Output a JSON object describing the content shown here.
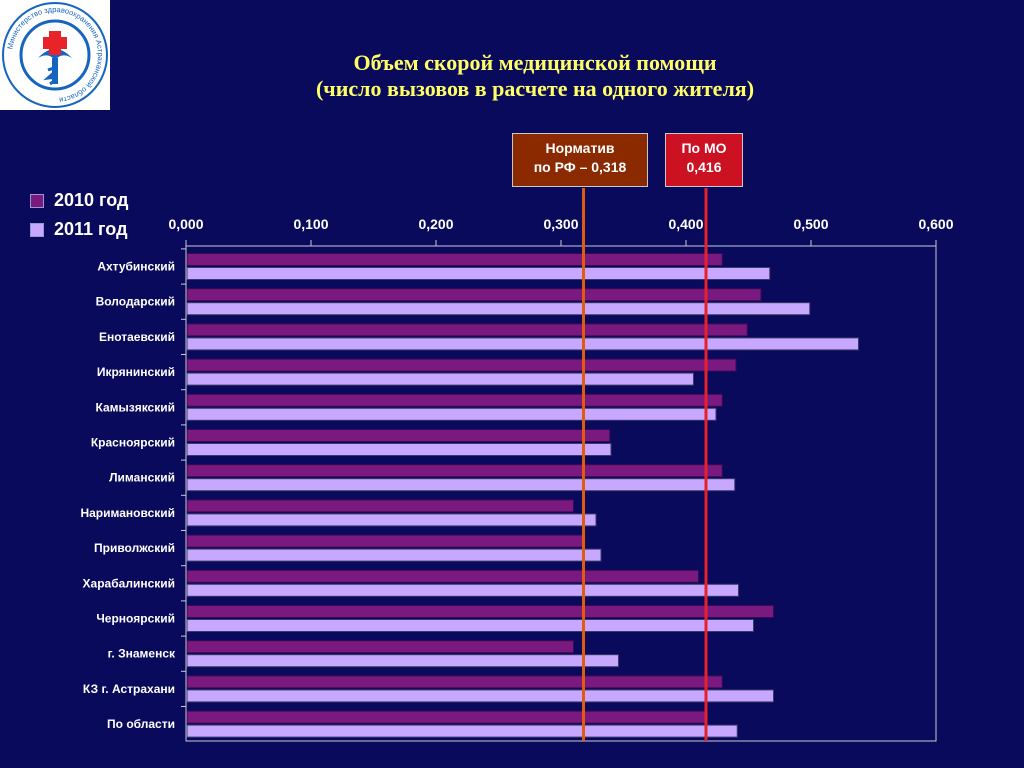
{
  "title_line1": "Объем скорой медицинской помощи",
  "title_line2": "(число вызовов в расчете на одного жителя)",
  "logo": {
    "emblem": "medical-cross-snake-emblem",
    "text": "Министерство здравоохранения Астраханской области",
    "colors": {
      "cross": "#e8232a",
      "emblem": "#1565c0"
    }
  },
  "callouts": {
    "norm": {
      "line1": "Норматив",
      "line2": "по РФ – 0,318"
    },
    "mo": {
      "line1": "По МО",
      "line2": "0,416"
    }
  },
  "colors": {
    "background": "#0a0a5c",
    "title": "#ffff66",
    "series_2010": "#7a1a80",
    "series_2011": "#c8a8ff",
    "norm_line": "#e05a10",
    "mo_line": "#e8202a"
  },
  "chart_data": {
    "type": "bar",
    "orientation": "horizontal",
    "categories": [
      "Ахтубинский",
      "Володарский",
      "Енотаевский",
      "Икрянинский",
      "Камызякский",
      "Красноярский",
      "Лиманский",
      "Наримановский",
      "Приволжский",
      "Харабалинский",
      "Черноярский",
      "г. Знаменск",
      "КЗ г. Астрахани",
      "По области"
    ],
    "series": [
      {
        "name": "2010 год",
        "values": [
          0.429,
          0.46,
          0.449,
          0.44,
          0.429,
          0.339,
          0.429,
          0.31,
          0.319,
          0.41,
          0.47,
          0.31,
          0.429,
          0.416
        ]
      },
      {
        "name": "2011 год",
        "values": [
          0.467,
          0.499,
          0.538,
          0.406,
          0.424,
          0.34,
          0.439,
          0.328,
          0.332,
          0.442,
          0.454,
          0.346,
          0.47,
          0.441
        ]
      }
    ],
    "xlim": [
      0,
      0.6
    ],
    "xticks": [
      "0,000",
      "0,100",
      "0,200",
      "0,300",
      "0,400",
      "0,500",
      "0,600"
    ],
    "xtick_values": [
      0,
      0.1,
      0.2,
      0.3,
      0.4,
      0.5,
      0.6
    ],
    "reference_lines": [
      {
        "name": "norm",
        "value": 0.318
      },
      {
        "name": "mo",
        "value": 0.416
      }
    ],
    "legend_position": "left-top",
    "grid": false
  }
}
